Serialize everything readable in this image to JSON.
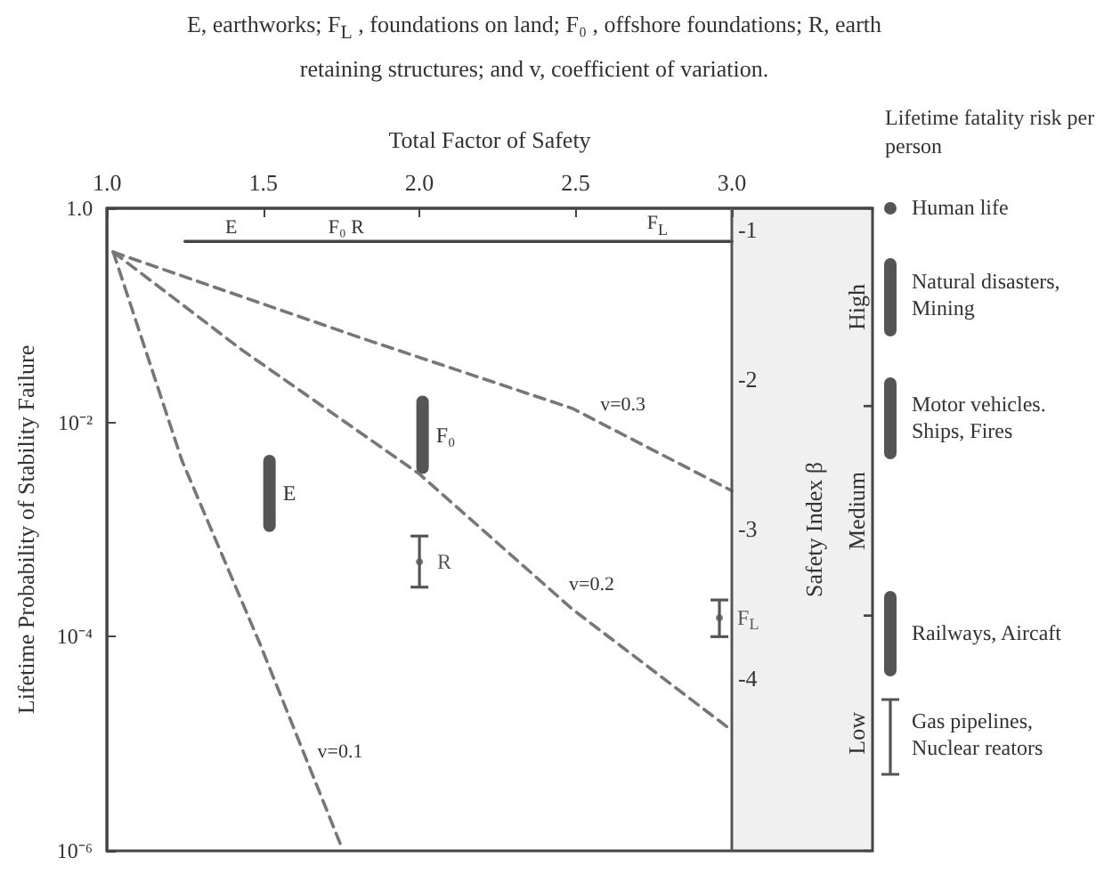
{
  "chart_data": [
    {
      "type": "line",
      "title": "E, earthworks; F$_{L}$ , foundations on land; F₀ , offshore foundations; R, earth retaining structures; and v, coefficient of variation.",
      "xlabel": "Total Factor of Safety",
      "ylabel": "Lifetime Probability of Stability Failure",
      "y2label": "Safety Index β",
      "xlim": [
        1.0,
        3.45
      ],
      "xticks": [
        {
          "value": 1,
          "label": "1.0"
        },
        {
          "value": 1.5,
          "label": "1.5"
        },
        {
          "value": 2,
          "label": "2.0"
        },
        {
          "value": 2.5,
          "label": "2.5"
        },
        {
          "value": 3,
          "label": "3.0"
        }
      ],
      "ylim": [
        1e-06,
        1
      ],
      "yticks": [
        {
          "value": 1,
          "label": "1.0"
        },
        {
          "value": 0.01,
          "label": "10⁻²"
        },
        {
          "value": 0.0001,
          "label": "10⁻⁴"
        },
        {
          "value": 1e-06,
          "label": "10⁻⁶"
        }
      ],
      "y2lim": [
        -5.15,
        -0.86
      ],
      "y2ticks": [
        -1,
        -2,
        -3,
        -4
      ],
      "log": "y",
      "grid": false,
      "legend": false,
      "ref_lines": [
        {
          "axis": "x",
          "value": 3.0,
          "label": null,
          "color": "#555555"
        }
      ],
      "bands": [
        {
          "axis": "y2",
          "from": -0.86,
          "to": -2.18,
          "label": "High",
          "color": "#f0f0f0"
        },
        {
          "axis": "y2",
          "from": -2.18,
          "to": -3.58,
          "label": "Medium",
          "color": "#f0f0f0"
        },
        {
          "axis": "y2",
          "from": -3.58,
          "to": -5.15,
          "label": "Low",
          "color": "#f0f0f0"
        }
      ],
      "annotations": [
        {
          "text": "v=0.1",
          "x": 1.645,
          "y": 6.3e-06
        },
        {
          "text": "v=0.2",
          "x": 2.45,
          "y": 0.00023
        },
        {
          "text": "v=0.3",
          "x": 2.55,
          "y": 0.011
        },
        {
          "text": "E",
          "x": 1.35,
          "y": 0.49
        },
        {
          "text": "F₀ R",
          "x": 1.68,
          "y": 0.49
        },
        {
          "text": "F$_{L}$",
          "x": 2.7,
          "y": 0.49
        }
      ],
      "series": [
        {
          "type": "line",
          "color": "#777777",
          "line_style": "dashed",
          "marker": "none",
          "x": [
            1.02,
            1.24,
            1.49,
            1.75
          ],
          "values": [
            0.39,
            0.0044,
            8.5e-05,
            1.1e-06
          ]
        },
        {
          "type": "line",
          "color": "#777777",
          "line_style": "dashed",
          "marker": "none",
          "x": [
            1.02,
            1.43,
            2.0,
            2.49,
            2.99
          ],
          "values": [
            0.39,
            0.048,
            0.0033,
            0.00018,
            1.4e-05
          ]
        },
        {
          "type": "line",
          "color": "#777777",
          "line_style": "dashed",
          "marker": "none",
          "x": [
            1.02,
            1.81,
            2.49,
            3.0
          ],
          "values": [
            0.39,
            0.062,
            0.0135,
            0.0023
          ]
        },
        {
          "type": "line",
          "color": "#444444",
          "line_style": "solid",
          "marker": "none",
          "x": [
            1.25,
            3.0
          ],
          "values": [
            0.49,
            0.49
          ]
        },
        {
          "type": "bar",
          "name": "E",
          "color": "#555555",
          "x": [
            1.52
          ],
          "base": [
            0.00095
          ],
          "values": [
            0.00405
          ]
        },
        {
          "type": "bar",
          "name": "F₀",
          "color": "#555555",
          "x": [
            2.01
          ],
          "base": [
            0.0033
          ],
          "values": [
            0.0145
          ]
        },
        {
          "type": "scatter",
          "name": "R",
          "color": "#555555",
          "marker": "circle",
          "x": [
            2.0
          ],
          "values": [
            0.0005
          ],
          "errors": [
            [
              0.00029,
              0.00087
            ]
          ]
        },
        {
          "type": "scatter",
          "name": "F$_{L}$",
          "color": "#555555",
          "marker": "circle",
          "x": [
            2.96
          ],
          "values": [
            0.00015
          ],
          "errors": [
            [
              0.0001,
              0.00022
            ]
          ]
        }
      ]
    },
    {
      "type": "other",
      "title": "Lifetime fatality risk per person",
      "annotations": [
        "Human life",
        "Natural disasters, Mining",
        "Motor vehicles. Ships, Fires",
        "Railways, Aircaft",
        "Gas pipelines, Nuclear reators"
      ]
    }
  ]
}
